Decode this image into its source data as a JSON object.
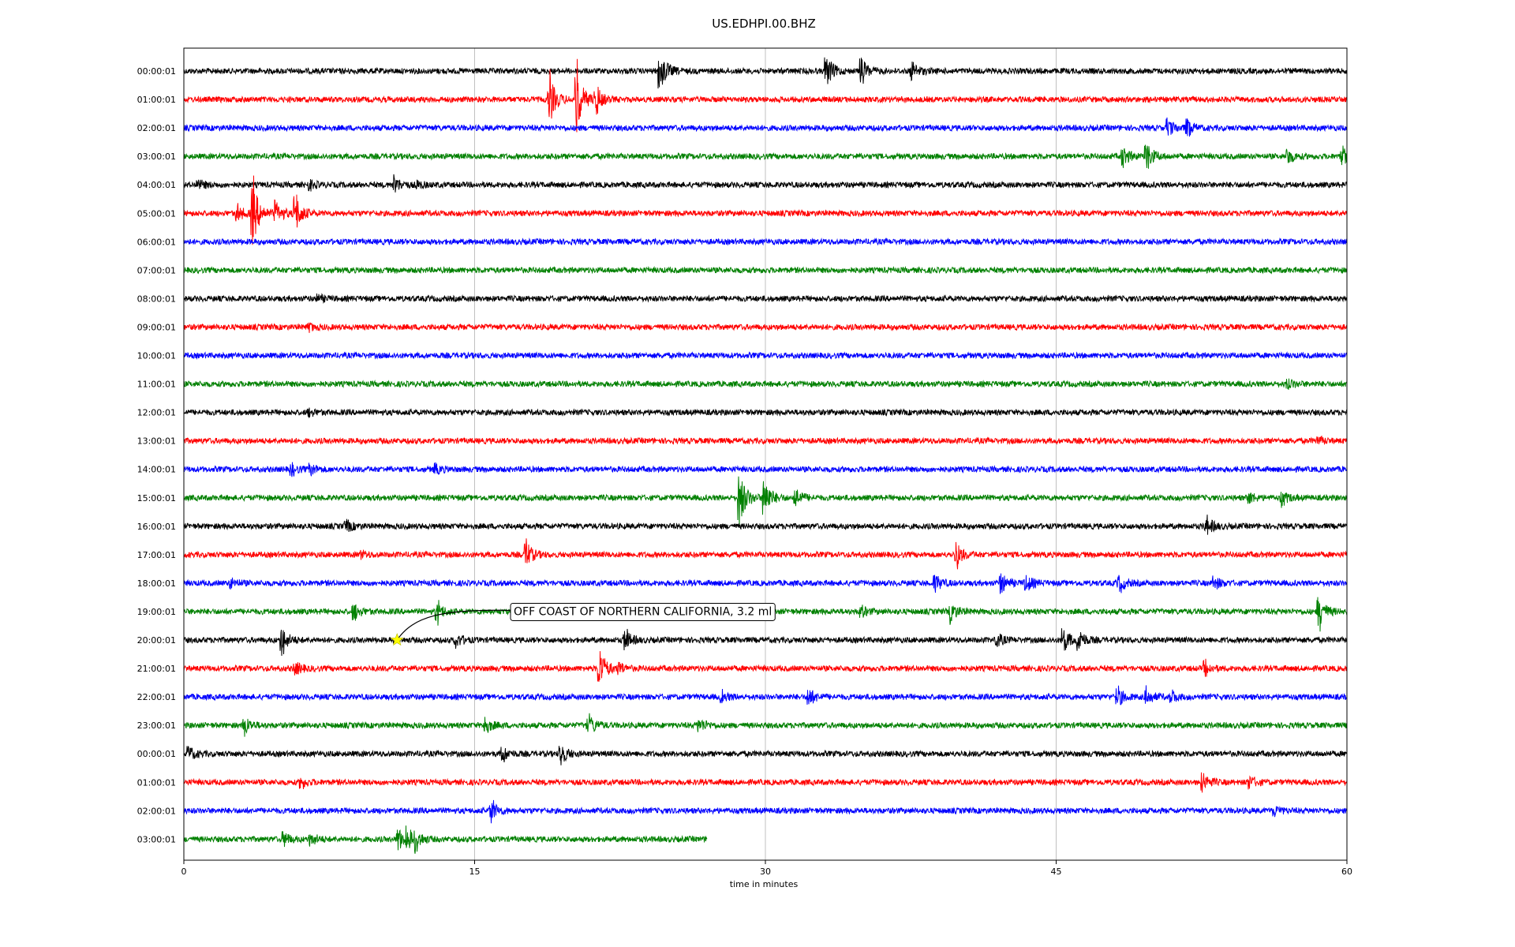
{
  "chart_data": {
    "type": "line",
    "title": "US.EDHPI.00.BHZ",
    "xlabel": "time in minutes",
    "ylabel": "",
    "xlim": [
      0,
      60
    ],
    "x_ticks": [
      "0",
      "15",
      "30",
      "45",
      "60"
    ],
    "grid": "vertical",
    "trace_colors": [
      "#000000",
      "#ff0000",
      "#0000ff",
      "#008000"
    ],
    "rows": [
      {
        "label": "00:00:01",
        "end_min": 60,
        "events": [
          [
            24.6,
            1.4
          ],
          [
            33.2,
            1.0
          ],
          [
            35.0,
            0.8
          ],
          [
            37.6,
            0.6
          ]
        ]
      },
      {
        "label": "01:00:01",
        "end_min": 60,
        "events": [
          [
            18.9,
            1.5
          ],
          [
            20.3,
            2.0
          ],
          [
            21.3,
            0.8
          ]
        ]
      },
      {
        "label": "02:00:01",
        "end_min": 60,
        "events": [
          [
            50.8,
            0.6
          ],
          [
            51.8,
            0.5
          ]
        ]
      },
      {
        "label": "03:00:01",
        "end_min": 60,
        "events": [
          [
            48.5,
            0.6
          ],
          [
            49.7,
            0.9
          ],
          [
            57.0,
            0.4
          ],
          [
            59.8,
            0.5
          ]
        ]
      },
      {
        "label": "04:00:01",
        "end_min": 60,
        "events": [
          [
            0.8,
            0.3
          ],
          [
            6.5,
            0.3
          ],
          [
            10.9,
            0.5
          ],
          [
            12.1,
            0.2
          ]
        ]
      },
      {
        "label": "05:00:01",
        "end_min": 60,
        "events": [
          [
            3.6,
            2.0
          ],
          [
            4.8,
            0.8
          ],
          [
            5.8,
            1.2
          ],
          [
            2.8,
            0.5
          ]
        ]
      },
      {
        "label": "06:00:01",
        "end_min": 60,
        "events": []
      },
      {
        "label": "07:00:01",
        "end_min": 60,
        "events": []
      },
      {
        "label": "08:00:01",
        "end_min": 60,
        "events": [
          [
            7.0,
            0.2
          ]
        ]
      },
      {
        "label": "09:00:01",
        "end_min": 60,
        "events": [
          [
            6.5,
            0.2
          ]
        ]
      },
      {
        "label": "10:00:01",
        "end_min": 60,
        "events": []
      },
      {
        "label": "11:00:01",
        "end_min": 60,
        "events": [
          [
            57.0,
            0.3
          ]
        ]
      },
      {
        "label": "12:00:01",
        "end_min": 60,
        "events": [
          [
            6.5,
            0.2
          ]
        ]
      },
      {
        "label": "13:00:01",
        "end_min": 60,
        "events": [
          [
            58.6,
            0.2
          ]
        ]
      },
      {
        "label": "14:00:01",
        "end_min": 60,
        "events": [
          [
            5.6,
            0.3
          ],
          [
            6.6,
            0.3
          ],
          [
            13.0,
            0.3
          ]
        ]
      },
      {
        "label": "15:00:01",
        "end_min": 60,
        "events": [
          [
            28.7,
            1.8
          ],
          [
            30.0,
            1.2
          ],
          [
            31.6,
            0.6
          ],
          [
            55.0,
            0.3
          ],
          [
            56.7,
            0.4
          ]
        ]
      },
      {
        "label": "16:00:01",
        "end_min": 60,
        "events": [
          [
            8.4,
            0.4
          ],
          [
            52.8,
            0.6
          ]
        ]
      },
      {
        "label": "17:00:01",
        "end_min": 60,
        "events": [
          [
            17.7,
            0.8
          ],
          [
            9.2,
            0.2
          ],
          [
            39.9,
            0.7
          ]
        ]
      },
      {
        "label": "18:00:01",
        "end_min": 60,
        "events": [
          [
            2.5,
            0.3
          ],
          [
            38.8,
            0.5
          ],
          [
            42.2,
            0.6
          ],
          [
            43.5,
            0.5
          ],
          [
            48.3,
            0.5
          ],
          [
            53.2,
            0.4
          ]
        ]
      },
      {
        "label": "19:00:01",
        "end_min": 60,
        "events": [
          [
            8.8,
            0.5
          ],
          [
            13.1,
            0.6
          ],
          [
            35.0,
            0.3
          ],
          [
            39.6,
            0.6
          ],
          [
            58.6,
            1.0
          ]
        ]
      },
      {
        "label": "20:00:01",
        "end_min": 60,
        "events": [
          [
            5.1,
            0.8
          ],
          [
            14.1,
            0.4
          ],
          [
            22.8,
            0.6
          ],
          [
            42.0,
            0.4
          ],
          [
            45.4,
            0.8
          ],
          [
            46.2,
            0.6
          ]
        ]
      },
      {
        "label": "21:00:01",
        "end_min": 60,
        "events": [
          [
            5.8,
            0.4
          ],
          [
            21.5,
            1.2
          ],
          [
            22.5,
            0.3
          ],
          [
            52.7,
            0.4
          ]
        ]
      },
      {
        "label": "22:00:01",
        "end_min": 60,
        "events": [
          [
            27.8,
            0.3
          ],
          [
            32.3,
            0.5
          ],
          [
            48.2,
            0.6
          ],
          [
            49.7,
            0.5
          ],
          [
            51.0,
            0.3
          ]
        ]
      },
      {
        "label": "23:00:01",
        "end_min": 60,
        "events": [
          [
            3.2,
            0.5
          ],
          [
            15.6,
            0.5
          ],
          [
            20.9,
            0.8
          ],
          [
            26.6,
            0.5
          ]
        ]
      },
      {
        "label": "00:00:01",
        "end_min": 60,
        "events": [
          [
            0.3,
            0.4
          ],
          [
            16.5,
            0.4
          ],
          [
            19.5,
            0.6
          ]
        ]
      },
      {
        "label": "01:00:01",
        "end_min": 60,
        "events": [
          [
            6.1,
            0.3
          ],
          [
            52.6,
            0.6
          ],
          [
            55.0,
            0.4
          ]
        ]
      },
      {
        "label": "02:00:01",
        "end_min": 60,
        "events": [
          [
            15.9,
            0.6
          ],
          [
            56.3,
            0.3
          ]
        ]
      },
      {
        "label": "03:00:01",
        "end_min": 27,
        "events": [
          [
            5.2,
            0.4
          ],
          [
            6.6,
            0.4
          ],
          [
            11.1,
            0.8
          ],
          [
            11.6,
            0.6
          ],
          [
            12.0,
            0.5
          ]
        ]
      }
    ],
    "annotation": {
      "text": "OFF COAST OF NORTHERN CALIFORNIA, 3.2 ml",
      "row_index": 20,
      "minute": 11.0,
      "marker_color": "#ffff00"
    }
  }
}
